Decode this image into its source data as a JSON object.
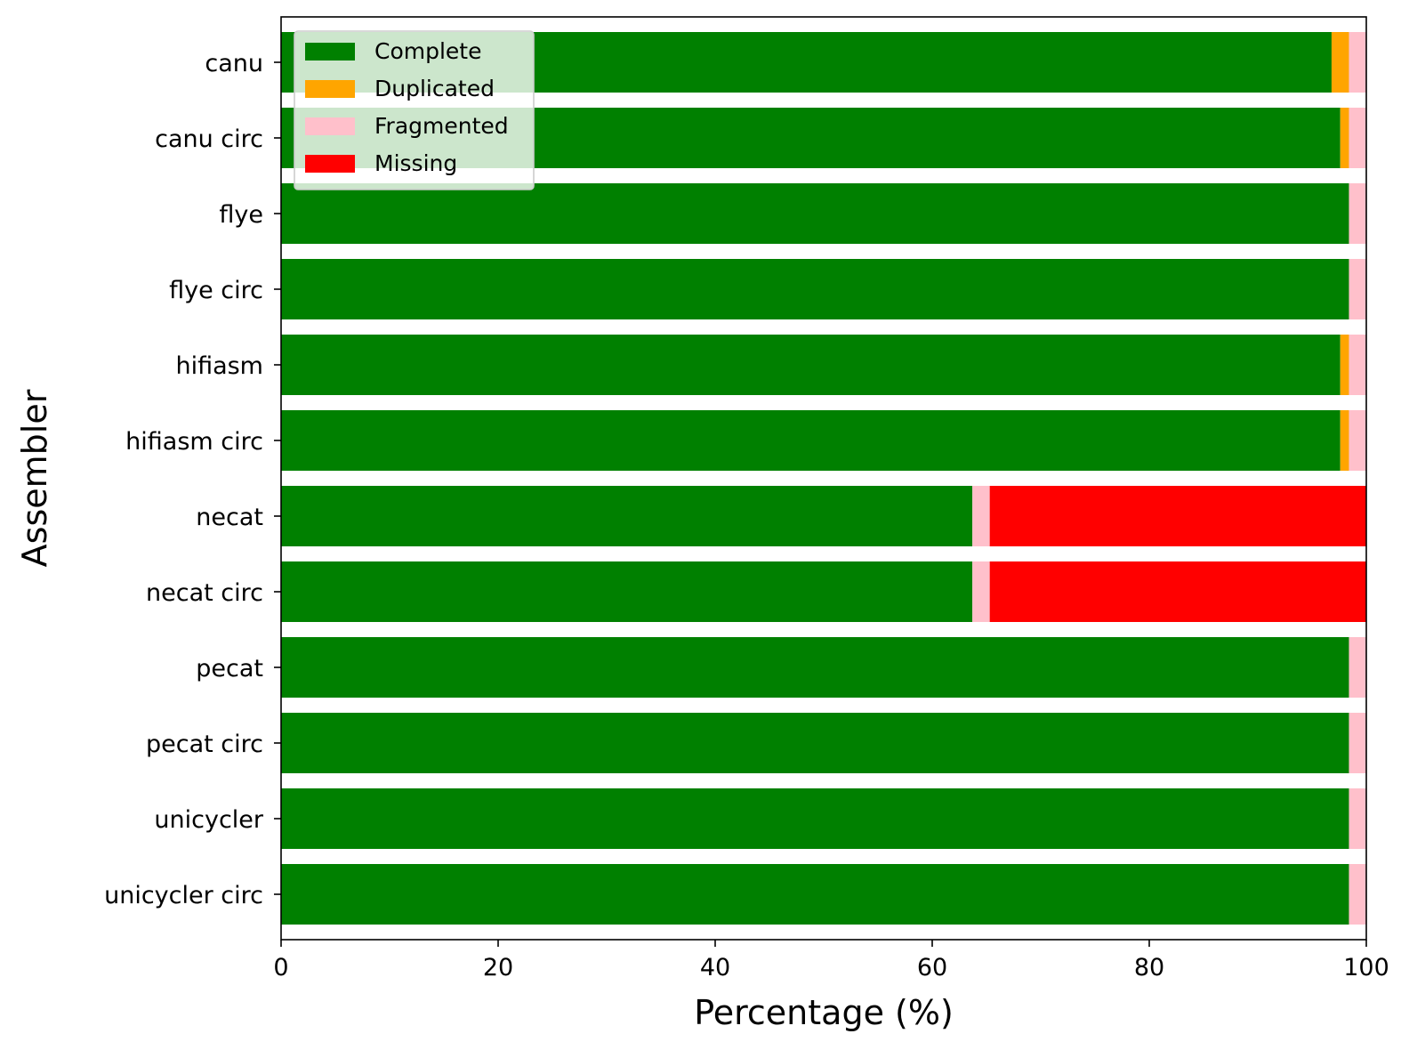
{
  "chart_data": {
    "type": "bar",
    "orientation": "horizontal",
    "stacked": true,
    "categories": [
      "canu",
      "canu circ",
      "flye",
      "flye circ",
      "hifiasm",
      "hifiasm circ",
      "necat",
      "necat circ",
      "pecat",
      "pecat circ",
      "unicycler",
      "unicycler circ"
    ],
    "series": [
      {
        "name": "Complete",
        "color": "#008000",
        "values": [
          96.8,
          97.6,
          98.4,
          98.4,
          97.6,
          97.6,
          63.7,
          63.7,
          98.4,
          98.4,
          98.4,
          98.4
        ]
      },
      {
        "name": "Duplicated",
        "color": "#ffa500",
        "values": [
          1.6,
          0.8,
          0.0,
          0.0,
          0.8,
          0.8,
          0.0,
          0.0,
          0.0,
          0.0,
          0.0,
          0.0
        ]
      },
      {
        "name": "Fragmented",
        "color": "#ffc0cb",
        "values": [
          1.6,
          1.6,
          1.6,
          1.6,
          1.6,
          1.6,
          1.6,
          1.6,
          1.6,
          1.6,
          1.6,
          1.6
        ]
      },
      {
        "name": "Missing",
        "color": "#ff0000",
        "values": [
          0.0,
          0.0,
          0.0,
          0.0,
          0.0,
          0.0,
          34.7,
          34.7,
          0.0,
          0.0,
          0.0,
          0.0
        ]
      }
    ],
    "title": "",
    "xlabel": "Percentage (%)",
    "ylabel": "Assembler",
    "xlim": [
      0,
      100
    ],
    "xticks": [
      "0",
      "20",
      "40",
      "60",
      "80",
      "100"
    ],
    "grid": false,
    "legend_position": "top-left"
  }
}
